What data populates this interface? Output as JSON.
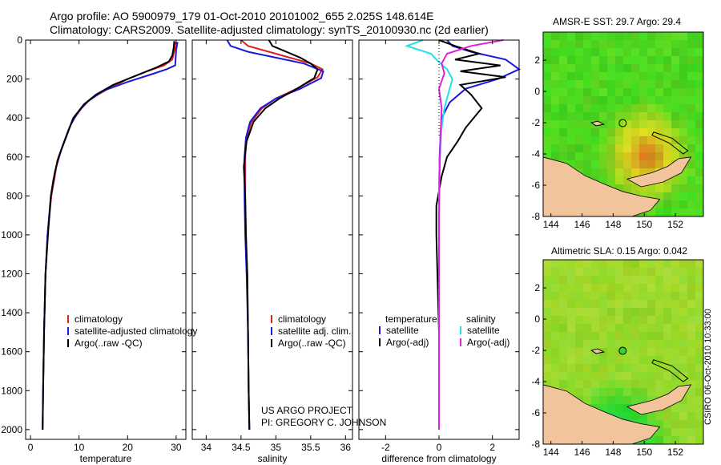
{
  "header": {
    "line1": "Argo profile: AO 5900979_179 01-Oct-2010 20101002_655 2.025S 148.614E",
    "line2": "Climatology: CARS2009. Satellite-adjusted climatology: synTS_20100930.nc (2d earlier)"
  },
  "side_label": "CSIRO 06-Oct-2010 10:33:00",
  "colors": {
    "climatology": "#e02020",
    "satellite": "#1a1adc",
    "argo": "#000000",
    "cyan": "#22e0e8",
    "magenta": "#e020e0",
    "land": "#f2c49b"
  },
  "chart_data": [
    {
      "type": "line",
      "xlabel": "temperature",
      "ylabel": "",
      "xlim": [
        -1,
        32
      ],
      "ylim": [
        2050,
        0
      ],
      "xticks": [
        0,
        10,
        20,
        30
      ],
      "yticks": [
        0,
        200,
        400,
        600,
        800,
        1000,
        1200,
        1400,
        1600,
        1800,
        2000
      ],
      "legend": [
        "climatology",
        "satellite-adjusted climatology",
        "Argo(..raw -QC)"
      ],
      "series": [
        {
          "name": "climatology",
          "color": "#e02020",
          "x": [
            29.9,
            29.7,
            29.2,
            27.5,
            24,
            20,
            16,
            12.5,
            10.5,
            8.5,
            7,
            5.5,
            5,
            4.3,
            3.5,
            3.1,
            2.8,
            2.6,
            2.5
          ],
          "y": [
            10,
            50,
            100,
            130,
            160,
            200,
            250,
            300,
            350,
            420,
            520,
            620,
            700,
            800,
            1000,
            1200,
            1500,
            1800,
            2000
          ]
        },
        {
          "name": "satellite-adjusted climatology",
          "color": "#1a1adc",
          "x": [
            30.3,
            30,
            29.8,
            28,
            25,
            20,
            15,
            11.5,
            9.5,
            8,
            6.5,
            5.3,
            4.7,
            4.2,
            3.5,
            3.1,
            2.8,
            2.6,
            2.5
          ],
          "y": [
            10,
            50,
            130,
            150,
            175,
            215,
            260,
            320,
            380,
            450,
            550,
            650,
            720,
            800,
            1000,
            1200,
            1500,
            1800,
            2000
          ]
        },
        {
          "name": "Argo(..raw -QC)",
          "color": "#000000",
          "x": [
            29.6,
            29.5,
            29.2,
            28.5,
            26,
            22,
            17,
            13.5,
            11,
            8.8,
            7.3,
            5.8,
            5,
            4.2,
            3.6,
            3.1,
            2.8,
            2.6,
            2.5
          ],
          "y": [
            5,
            40,
            80,
            110,
            140,
            180,
            230,
            280,
            330,
            400,
            500,
            600,
            680,
            800,
            1000,
            1200,
            1500,
            1800,
            2000
          ]
        }
      ]
    },
    {
      "type": "line",
      "xlabel": "salinity",
      "ylabel": "",
      "xlim": [
        33.8,
        36.1
      ],
      "ylim": [
        2050,
        0
      ],
      "xticks": [
        34,
        34.5,
        35,
        35.5,
        36
      ],
      "yticks": [
        0,
        200,
        400,
        600,
        800,
        1000,
        1200,
        1400,
        1600,
        1800,
        2000
      ],
      "legend": [
        "climatology",
        "satellite adj. clim.",
        "Argo(..raw -QC)"
      ],
      "series": [
        {
          "name": "climatology",
          "color": "#e02020",
          "x": [
            34.5,
            34.6,
            34.9,
            35.2,
            35.5,
            35.67,
            35.6,
            35.3,
            35.0,
            34.8,
            34.65,
            34.58,
            34.56,
            34.56,
            34.57,
            34.59,
            34.6,
            34.61,
            34.62
          ],
          "y": [
            0,
            30,
            60,
            90,
            120,
            150,
            190,
            250,
            300,
            350,
            420,
            500,
            600,
            800,
            1000,
            1200,
            1500,
            1800,
            2000
          ]
        },
        {
          "name": "satellite adj. clim.",
          "color": "#1a1adc",
          "x": [
            34.3,
            34.35,
            34.6,
            35.0,
            35.4,
            35.68,
            35.65,
            35.35,
            35.0,
            34.78,
            34.63,
            34.57,
            34.55,
            34.55,
            34.56,
            34.58,
            34.6,
            34.61,
            34.62
          ],
          "y": [
            0,
            30,
            60,
            90,
            120,
            160,
            195,
            250,
            300,
            350,
            420,
            500,
            600,
            800,
            1000,
            1200,
            1500,
            1800,
            2000
          ]
        },
        {
          "name": "Argo(..raw -QC)",
          "color": "#000000",
          "x": [
            34.9,
            34.95,
            35.15,
            35.35,
            35.5,
            35.6,
            35.55,
            35.3,
            35.05,
            34.85,
            34.68,
            34.58,
            34.54,
            34.56,
            34.57,
            34.59,
            34.6,
            34.61,
            34.62
          ],
          "y": [
            0,
            30,
            60,
            90,
            120,
            150,
            195,
            250,
            300,
            350,
            420,
            520,
            650,
            800,
            1000,
            1200,
            1500,
            1800,
            2000
          ]
        }
      ]
    },
    {
      "type": "line",
      "xlabel": "difference from climatology",
      "ylabel": "",
      "xlim": [
        -3,
        3
      ],
      "ylim": [
        2050,
        0
      ],
      "xticks": [
        -2,
        0,
        2
      ],
      "yticks": [
        0,
        200,
        400,
        600,
        800,
        1000,
        1200,
        1400,
        1600,
        1800,
        2000
      ],
      "legend": [
        "temperature",
        "satellite",
        "Argo(-adj)",
        "salinity",
        "satellite",
        "Argo(-adj)"
      ],
      "series": [
        {
          "name": "temperature satellite",
          "color": "#1a1adc",
          "x": [
            0.3,
            0.5,
            1.2,
            2.5,
            3.0,
            2.2,
            1.0,
            0.4,
            0.1,
            0.05,
            0.02,
            0,
            0,
            0,
            0
          ],
          "y": [
            0,
            30,
            60,
            100,
            150,
            200,
            250,
            320,
            400,
            500,
            600,
            800,
            1200,
            1600,
            2000
          ]
        },
        {
          "name": "temperature Argo(-adj)",
          "color": "#000000",
          "x": [
            0,
            0.6,
            1.5,
            0.6,
            2.3,
            0.8,
            2.5,
            0.8,
            1.2,
            1.6,
            1.0,
            0.7,
            0.3,
            0.1,
            -0.1,
            -0.1,
            0,
            0
          ],
          "y": [
            0,
            30,
            70,
            100,
            130,
            160,
            190,
            230,
            280,
            350,
            450,
            520,
            600,
            700,
            850,
            1000,
            1500,
            2000
          ]
        },
        {
          "name": "salinity satellite",
          "color": "#22e0e8",
          "x": [
            -0.6,
            -1.2,
            -0.3,
            -0.1,
            0.3,
            0.5,
            0.4,
            0.2,
            0.1,
            0.05,
            0,
            0,
            0
          ],
          "y": [
            0,
            30,
            70,
            100,
            150,
            200,
            250,
            350,
            450,
            550,
            700,
            1200,
            2000
          ]
        },
        {
          "name": "salinity Argo(-adj)",
          "color": "#e020e0",
          "x": [
            2.4,
            1.2,
            0.3,
            0.1,
            0.2,
            0.0,
            0.1,
            0.05,
            0.02,
            0,
            0,
            0
          ],
          "y": [
            0,
            30,
            70,
            120,
            170,
            250,
            350,
            500,
            700,
            900,
            1400,
            2000
          ]
        }
      ]
    },
    {
      "type": "heatmap",
      "title": "AMSR-E SST: 29.7 Argo: 29.4",
      "xlim": [
        143.5,
        153.8
      ],
      "ylim": [
        -8,
        3.8
      ],
      "xticks": [
        144,
        146,
        148,
        150,
        152
      ],
      "yticks": [
        -8,
        -6,
        -4,
        -2,
        0,
        2
      ],
      "argo_location": {
        "lon": 148.614,
        "lat": -2.025
      }
    },
    {
      "type": "heatmap",
      "title": "Altimetric SLA: 0.15 Argo: 0.042",
      "xlim": [
        143.5,
        153.8
      ],
      "ylim": [
        -8,
        3.8
      ],
      "xticks": [
        144,
        146,
        148,
        150,
        152
      ],
      "yticks": [
        -8,
        -6,
        -4,
        -2,
        0,
        2
      ],
      "argo_location": {
        "lon": 148.614,
        "lat": -2.025
      }
    }
  ],
  "annotations": {
    "project_line1": "US ARGO PROJECT",
    "project_line2": "PI: GREGORY C. JOHNSON"
  }
}
